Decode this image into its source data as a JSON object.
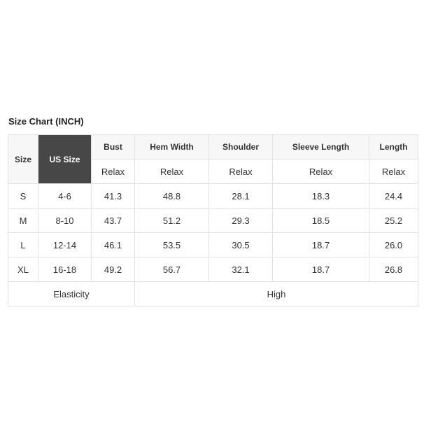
{
  "title": "Size Chart (INCH)",
  "headers": [
    "Size",
    "US Size",
    "Bust",
    "Hem Width",
    "Shoulder",
    "Sleeve Length",
    "Length"
  ],
  "subheader": "Relax",
  "rows": [
    [
      "S",
      "4-6",
      "41.3",
      "48.8",
      "28.1",
      "18.3",
      "24.4"
    ],
    [
      "M",
      "8-10",
      "43.7",
      "51.2",
      "29.3",
      "18.5",
      "25.2"
    ],
    [
      "L",
      "12-14",
      "46.1",
      "53.5",
      "30.5",
      "18.7",
      "26.0"
    ],
    [
      "XL",
      "16-18",
      "49.2",
      "56.7",
      "32.1",
      "18.7",
      "26.8"
    ]
  ],
  "footer": {
    "label": "Elasticity",
    "value": "High"
  },
  "colors": {
    "highlight": "#474747",
    "header_bg": "#f7f7f7",
    "border": "#e2e2e2"
  }
}
